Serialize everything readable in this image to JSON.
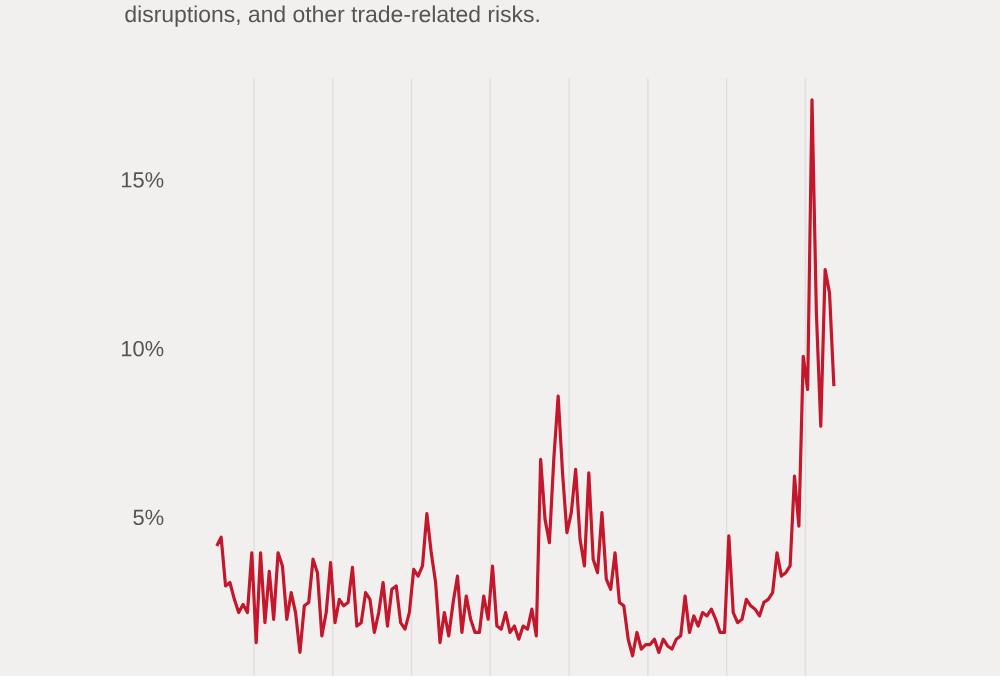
{
  "chart_data": {
    "type": "line",
    "subtitle": "disruptions, and other trade-related risks.",
    "ylim": [
      0.3,
      18
    ],
    "yticks": [
      {
        "value": 5,
        "label": "5%"
      },
      {
        "value": 10,
        "label": "10%"
      },
      {
        "value": 15,
        "label": "15%"
      }
    ],
    "categories": [
      null,
      null,
      null,
      null,
      null,
      null,
      null,
      null,
      null,
      null,
      null,
      null,
      null,
      null,
      null,
      null,
      null,
      null,
      null,
      null,
      null,
      null,
      null,
      null,
      null,
      null,
      null,
      null,
      null,
      null,
      null,
      null,
      null,
      null,
      null,
      null,
      null,
      null,
      null,
      null,
      null,
      null,
      null,
      null,
      null,
      null,
      null,
      null,
      null,
      null,
      null,
      null,
      null,
      null,
      null,
      null,
      null,
      null,
      null,
      null,
      null,
      null,
      null,
      null,
      null,
      null,
      null,
      null,
      null,
      null,
      null,
      null,
      null,
      null,
      null,
      null,
      null,
      null,
      null,
      null,
      null,
      null,
      null,
      null,
      null,
      null,
      null,
      null,
      null,
      null,
      null,
      null,
      null,
      null,
      null,
      null,
      null,
      null,
      null,
      null,
      null,
      null,
      null,
      null,
      null,
      null,
      null,
      null,
      null,
      null,
      null,
      null,
      null,
      null,
      null,
      null,
      null,
      null,
      null,
      null,
      null,
      null,
      null,
      null,
      null,
      null,
      null,
      null,
      null,
      null,
      null,
      null,
      null,
      null,
      null,
      null,
      null,
      null,
      null,
      null,
      null,
      null
    ],
    "grid": "x",
    "marker": "none",
    "line_style": "solid",
    "series": [
      {
        "color": "#c4172c",
        "values": [
          4.15,
          4.41,
          2.97,
          3.07,
          2.58,
          2.18,
          2.42,
          2.18,
          3.95,
          1.29,
          3.95,
          1.88,
          3.4,
          1.98,
          3.95,
          3.56,
          1.98,
          2.77,
          2.18,
          1.0,
          2.38,
          2.48,
          3.76,
          3.36,
          1.49,
          2.18,
          3.66,
          1.88,
          2.57,
          2.38,
          2.48,
          3.52,
          1.78,
          1.88,
          2.77,
          2.57,
          1.59,
          2.18,
          3.07,
          1.78,
          2.87,
          2.97,
          1.88,
          1.69,
          2.18,
          3.46,
          3.26,
          3.56,
          5.11,
          3.95,
          3.07,
          1.29,
          2.18,
          1.49,
          2.48,
          3.26,
          1.59,
          2.67,
          1.98,
          1.59,
          1.59,
          2.67,
          1.98,
          3.56,
          1.78,
          1.69,
          2.18,
          1.59,
          1.78,
          1.39,
          1.78,
          1.69,
          2.28,
          1.49,
          6.72,
          4.94,
          4.25,
          6.72,
          8.59,
          6.32,
          4.55,
          5.14,
          6.42,
          4.35,
          3.56,
          6.32,
          3.76,
          3.36,
          5.14,
          3.17,
          2.87,
          3.95,
          2.48,
          2.38,
          1.39,
          0.9,
          1.59,
          1.1,
          1.23,
          1.23,
          1.39,
          1.0,
          1.39,
          1.19,
          1.1,
          1.39,
          1.49,
          2.67,
          1.59,
          2.08,
          1.78,
          2.18,
          2.08,
          2.28,
          1.98,
          1.59,
          1.59,
          4.45,
          2.18,
          1.88,
          1.98,
          2.57,
          2.38,
          2.28,
          2.08,
          2.48,
          2.57,
          2.77,
          3.95,
          3.26,
          3.36,
          3.56,
          6.22,
          4.74,
          9.77,
          8.79,
          17.37,
          11.06,
          7.7,
          12.34,
          11.65,
          8.89
        ]
      }
    ]
  }
}
